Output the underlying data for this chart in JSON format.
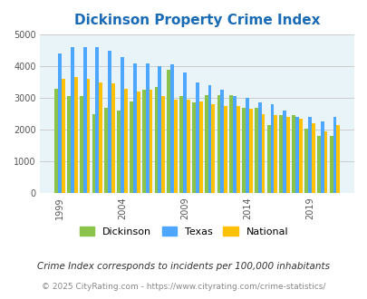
{
  "title": "Dickinson Property Crime Index",
  "subtitle": "Crime Index corresponds to incidents per 100,000 inhabitants",
  "footer": "© 2025 CityRating.com - https://www.cityrating.com/crime-statistics/",
  "years": [
    1999,
    2000,
    2001,
    2002,
    2003,
    2004,
    2005,
    2006,
    2007,
    2008,
    2009,
    2010,
    2011,
    2012,
    2013,
    2014,
    2015,
    2016,
    2017,
    2018,
    2019,
    2020,
    2021
  ],
  "dickinson": [
    3300,
    3050,
    3050,
    2500,
    2700,
    2600,
    2900,
    3250,
    3350,
    3900,
    3050,
    2850,
    3100,
    3100,
    3100,
    2700,
    2700,
    2150,
    2450,
    2450,
    2020,
    1800,
    1800
  ],
  "texas": [
    4400,
    4600,
    4600,
    4600,
    4500,
    4300,
    4100,
    4100,
    4000,
    4050,
    3800,
    3500,
    3400,
    3250,
    3050,
    3000,
    2850,
    2800,
    2600,
    2400,
    2400,
    2250,
    2400
  ],
  "national": [
    3600,
    3650,
    3600,
    3500,
    3450,
    3300,
    3200,
    3250,
    3050,
    2950,
    2950,
    2900,
    2800,
    2750,
    2750,
    2650,
    2500,
    2450,
    2400,
    2350,
    2200,
    1950,
    2150
  ],
  "dickinson_color": "#8bc34a",
  "texas_color": "#4da6ff",
  "national_color": "#ffc107",
  "bg_color": "#e8f4f8",
  "title_color": "#1a6bb5",
  "ylim": [
    0,
    5000
  ],
  "yticks": [
    0,
    1000,
    2000,
    3000,
    4000,
    5000
  ],
  "xlabel_ticks": [
    1999,
    2004,
    2009,
    2014,
    2019
  ],
  "grid_color": "#cccccc",
  "footer_color": "#888888",
  "subtitle_color": "#333333"
}
